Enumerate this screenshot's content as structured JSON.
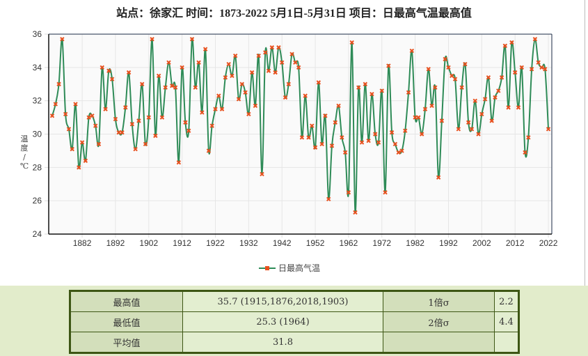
{
  "title": "站点：徐家汇  时间：1873-2022  5月1日-5月31日  项目：日最高气温最高值",
  "colors": {
    "line": "#2e8b57",
    "marker": "#e8501e",
    "table_border": "#3d5614",
    "bottom_bg": "#e2eccb"
  },
  "chart_data": {
    "type": "line",
    "title": "站点：徐家汇  时间：1873-2022  5月1日-5月31日  项目：日最高气温最高值",
    "xlabel": "",
    "ylabel": "温度/℃",
    "ylabel_chars": [
      "温",
      "度",
      "/",
      "℃"
    ],
    "ylim": [
      24,
      36
    ],
    "yticks": [
      24,
      26,
      28,
      30,
      32,
      34,
      36
    ],
    "xlim": [
      1873,
      2022
    ],
    "xticks": [
      1882,
      1892,
      1902,
      1912,
      1922,
      1932,
      1942,
      1952,
      1962,
      1972,
      1982,
      1992,
      2002,
      2012,
      2022
    ],
    "grid": true,
    "legend_placement": "bottom",
    "x_start": 1873,
    "series": [
      {
        "name": "日最高气温",
        "values": [
          31.1,
          31.8,
          33.0,
          35.7,
          31.2,
          30.3,
          29.1,
          31.8,
          28.0,
          29.5,
          28.4,
          31.0,
          31.1,
          30.5,
          29.4,
          34.0,
          31.5,
          33.8,
          33.3,
          30.9,
          30.1,
          30.1,
          31.6,
          33.7,
          30.6,
          29.1,
          30.8,
          33.0,
          29.4,
          31.0,
          35.7,
          29.9,
          33.5,
          31.0,
          32.8,
          34.3,
          32.9,
          32.8,
          28.3,
          34.0,
          30.7,
          30.2,
          35.7,
          32.8,
          34.3,
          31.3,
          35.1,
          29.0,
          30.5,
          31.5,
          32.3,
          31.5,
          33.4,
          34.2,
          33.5,
          34.7,
          32.1,
          33.0,
          32.5,
          31.2,
          33.7,
          31.7,
          34.7,
          27.6,
          34.9,
          33.8,
          35.2,
          33.7,
          35.2,
          34.3,
          32.2,
          33.0,
          34.8,
          34.3,
          34.0,
          29.8,
          32.3,
          29.8,
          30.5,
          29.2,
          33.1,
          29.4,
          31.1,
          26.1,
          29.3,
          30.7,
          31.7,
          29.8,
          28.9,
          26.5,
          35.5,
          25.3,
          32.8,
          29.5,
          33.0,
          29.6,
          32.4,
          30.0,
          29.5,
          32.6,
          26.5,
          34.1,
          30.1,
          29.4,
          28.9,
          29.0,
          30.2,
          32.5,
          35.0,
          31.0,
          31.0,
          30.0,
          31.5,
          33.9,
          31.7,
          32.8,
          27.4,
          30.8,
          34.5,
          34.0,
          33.5,
          33.3,
          30.3,
          32.8,
          34.2,
          30.7,
          30.3,
          32.0,
          30.0,
          31.2,
          32.1,
          33.4,
          30.8,
          32.2,
          32.6,
          33.4,
          35.3,
          31.6,
          35.5,
          33.7,
          31.6,
          34.0,
          28.9,
          29.8,
          33.9,
          35.7,
          34.3,
          34.0,
          33.9,
          30.3
        ]
      }
    ]
  },
  "stats_table": {
    "max_label": "最高值",
    "max_value": "35.7 (1915,1876,2018,1903)",
    "min_label": "最低值",
    "min_value": "25.3 (1964)",
    "mean_label": "平均值",
    "mean_value": "31.8",
    "sigma1_label": "1倍σ",
    "sigma1_value": "2.2",
    "sigma2_label": "2倍σ",
    "sigma2_value": "4.4"
  }
}
